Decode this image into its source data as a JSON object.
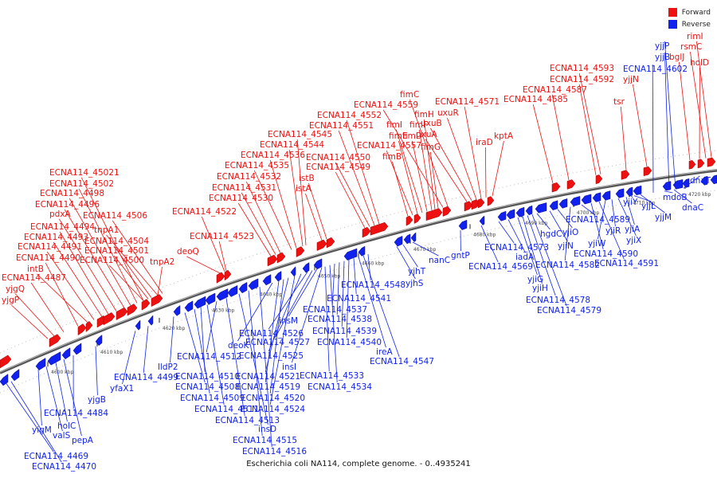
{
  "caption": "Escherichia coli NA114, complete genome. - 0..4935241",
  "legend": [
    {
      "label": "Forward",
      "color": "#ee1111"
    },
    {
      "label": "Reverse",
      "color": "#1122ee"
    }
  ],
  "colors": {
    "forward": "#ee1111",
    "reverse": "#1122ee",
    "backbone": "#555555"
  },
  "ticks": [
    "4600 kbp",
    "4610 kbp",
    "4620 kbp",
    "4630 kbp",
    "4640 kbp",
    "4650 kbp",
    "4660 kbp",
    "4670 kbp",
    "4680 kbp",
    "4690 kbp",
    "4700 kbp",
    "4710 kbp",
    "4720 kbp"
  ],
  "forward_labels": [
    "yjgP",
    "yjgQ",
    "ECNA114_4487",
    "ECNA114_4490",
    "intB",
    "ECNA114_4491",
    "ECNA114_4493",
    "ECNA114_4494",
    "pdxA",
    "ECNA114_4496",
    "ECNA114_4498",
    "ECNA114_4502",
    "ECNA114_45021",
    "ECNA114_4500",
    "ECNA114_4501",
    "ECNA114_4504",
    "tnpA1",
    "ECNA114_4506",
    "tnpA2",
    "deoQ",
    "ECNA114_4523",
    "ECNA114_4522",
    "ECNA114_4530",
    "ECNA114_4531",
    "ECNA114_4532",
    "ECNA114_4535",
    "ECNA114_4536",
    "ECNA114_4544",
    "ECNA114_4545",
    "istA",
    "istB",
    "ECNA114_4549",
    "ECNA114_4550",
    "ECNA114_4551",
    "ECNA114_4552",
    "fimB",
    "ECNA114_4557",
    "fimE",
    "fimI",
    "fimD",
    "fimF",
    "fimH",
    "fimG",
    "ECNA114_4559",
    "fimC",
    "uxuA",
    "uxuB",
    "uxuR",
    "ECNA114_4571",
    "iraD",
    "kptA",
    "ECNA114_4585",
    "ECNA114_4587",
    "ECNA114_4592",
    "ECNA114_4593",
    "tsr",
    "yjjN",
    "bglJ",
    "holD",
    "rsmC",
    "rimI"
  ],
  "reverse_labels": [
    "ECNA114_4469",
    "ECNA114_4470",
    "yigM",
    "valS",
    "holC",
    "pepA",
    "ECNA114_4484",
    "yjgB",
    "yfaX1",
    "ECNA114_4499",
    "lldP2",
    "ECNA114_4508",
    "ECNA114_4509",
    "ECNA114_4510",
    "ECNA114_4511",
    "ECNA114_4512",
    "ECNA114_4513",
    "insD",
    "ECNA114_4515",
    "ECNA114_4516",
    "deoK",
    "ECNA114_4519",
    "ECNA114_4520",
    "ECNA114_4521",
    "ECNA114_4524",
    "ECNA114_4525",
    "ECNA114_4526",
    "ECNA114_4527",
    "insM",
    "insI",
    "ECNA114_4533",
    "ECNA114_4534",
    "ECNA114_4537",
    "ECNA114_4538",
    "ECNA114_4539",
    "ECNA114_4540",
    "ECNA114_4541",
    "ireA",
    "ECNA114_4547",
    "ECNA114_4548",
    "yjhS",
    "yjhT",
    "nanC",
    "gntP",
    "ECNA114_4569",
    "ECNA114_4573",
    "iadA",
    "yjiG",
    "yjiH",
    "ECNA114_4578",
    "ECNA114_4579",
    "hgdC",
    "yjiN",
    "yjiO",
    "ECNA114_4582",
    "ECNA114_4589",
    "ECNA114_4590",
    "ECNA114_4591",
    "yjiW",
    "yjiR",
    "yjiX",
    "yjiA",
    "yjiY",
    "yjjL",
    "yjjM",
    "mdoB",
    "dnaC",
    "dnaT",
    "ECNA114_4602",
    "yjjB",
    "yjjP"
  ]
}
